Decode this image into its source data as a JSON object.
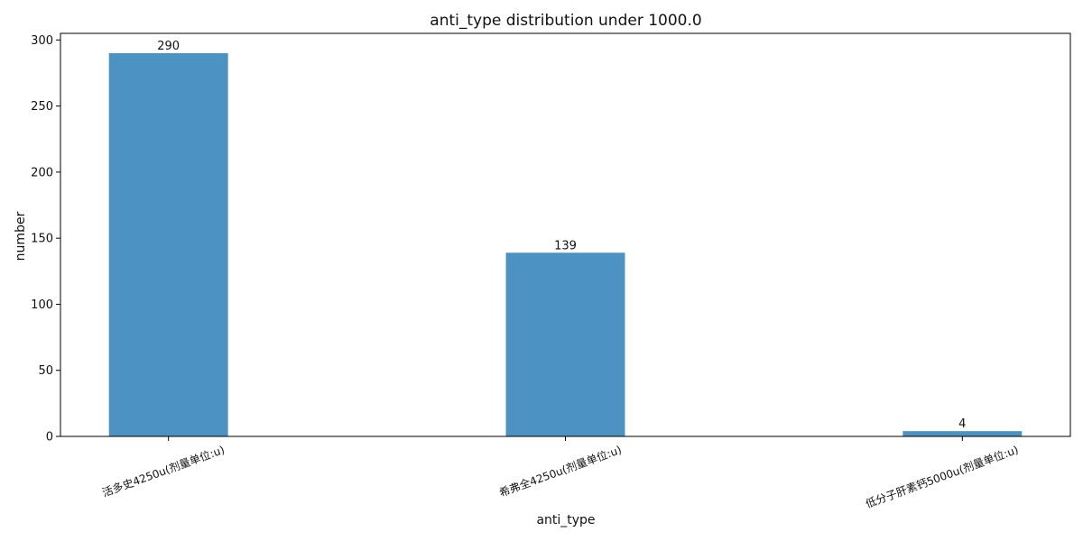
{
  "chart_data": {
    "type": "bar",
    "title": "anti_type distribution under 1000.0",
    "xlabel": "anti_type",
    "ylabel": "number",
    "categories": [
      "活多史4250u(剂量单位:u)",
      "希弗全4250u(剂量单位:u)",
      "低分子肝素钙5000u(剂量单位:u)"
    ],
    "values": [
      290,
      139,
      4
    ],
    "data_labels": [
      "290",
      "139",
      "4"
    ],
    "ylim": [
      0,
      305
    ],
    "yticks": [
      0,
      50,
      100,
      150,
      200,
      250,
      300
    ],
    "bar_color": "#4c92c3",
    "grid": false,
    "legend": "none"
  }
}
